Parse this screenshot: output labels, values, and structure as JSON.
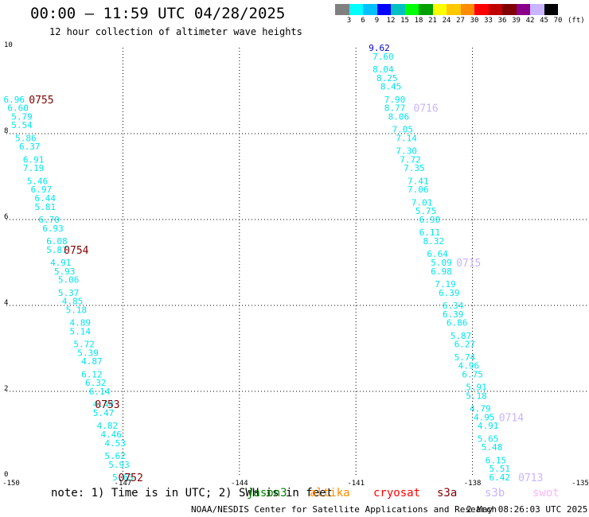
{
  "header": {
    "title": "00:00 – 11:59 UTC 04/28/2025",
    "subtitle": "12 hour collection of altimeter wave heights"
  },
  "colorbar": {
    "unit": "(ft)",
    "ticks": [
      "3",
      "6",
      "9",
      "12",
      "15",
      "18",
      "21",
      "24",
      "27",
      "30",
      "33",
      "36",
      "39",
      "42",
      "45",
      "70"
    ],
    "colors": [
      "#808080",
      "#00ffff",
      "#00c0ff",
      "#0000ff",
      "#00c0c0",
      "#00ff00",
      "#00a000",
      "#ffff00",
      "#ffc800",
      "#ff8c00",
      "#ff0000",
      "#c00000",
      "#800000",
      "#8b008b",
      "#c8b4ff",
      "#000000"
    ]
  },
  "footer": {
    "note": "note:  1) Time is in UTC; 2) SWH is in feet",
    "satellites": [
      {
        "name": "jason3",
        "color": "#008000"
      },
      {
        "name": "altika",
        "color": "#ff8c00"
      },
      {
        "name": "cryosat",
        "color": "#ff0000"
      },
      {
        "name": "s3a",
        "color": "#800000"
      },
      {
        "name": "s3b",
        "color": "#c8b4ff"
      },
      {
        "name": "swot",
        "color": "#ffb4ff"
      }
    ],
    "credit": "NOAA/NESDIS Center for Satellite Applications and Research",
    "timestamp": "2 May 08:26:03 UTC 2025"
  },
  "chart_data": {
    "type": "scatter",
    "title": "00:00 – 11:59 UTC 04/28/2025",
    "subtitle": "12 hour collection of altimeter wave heights",
    "xlim": [
      -150,
      -135
    ],
    "ylim": [
      0,
      10
    ],
    "xticks": [
      "-150",
      "-147",
      "-144",
      "-141",
      "-138",
      "-135"
    ],
    "yticks": [
      "0",
      "2",
      "4",
      "6",
      "8",
      "10"
    ],
    "grid": true,
    "track_color": "#00e5ee",
    "track_color_high": "#0000cd",
    "tracks": [
      {
        "satellite": "s3a",
        "color": "#800000",
        "points": [
          {
            "lon": -149.8,
            "lat": 8.8,
            "swh": "6.96"
          },
          {
            "lon": -149.7,
            "lat": 8.6,
            "swh": "6.60"
          },
          {
            "lon": -149.6,
            "lat": 8.4,
            "swh": "5.79"
          },
          {
            "lon": -149.6,
            "lat": 8.2,
            "swh": "5.54"
          },
          {
            "lon": -149.5,
            "lat": 7.9,
            "swh": "5.86"
          },
          {
            "lon": -149.4,
            "lat": 7.7,
            "swh": "6.37"
          },
          {
            "lon": -149.3,
            "lat": 7.4,
            "swh": "6.91"
          },
          {
            "lon": -149.3,
            "lat": 7.2,
            "swh": "7.19"
          },
          {
            "lon": -149.2,
            "lat": 6.9,
            "swh": "5.46"
          },
          {
            "lon": -149.1,
            "lat": 6.7,
            "swh": "6.97"
          },
          {
            "lon": -149.0,
            "lat": 6.5,
            "swh": "6.44"
          },
          {
            "lon": -149.0,
            "lat": 6.3,
            "swh": "5.81"
          },
          {
            "lon": -148.9,
            "lat": 6.0,
            "swh": "6.70"
          },
          {
            "lon": -148.8,
            "lat": 5.8,
            "swh": "6.93"
          },
          {
            "lon": -148.7,
            "lat": 5.5,
            "swh": "6.08"
          },
          {
            "lon": -148.7,
            "lat": 5.3,
            "swh": "5.87"
          },
          {
            "lon": -148.6,
            "lat": 5.0,
            "swh": "4.91"
          },
          {
            "lon": -148.5,
            "lat": 4.8,
            "swh": "5.93"
          },
          {
            "lon": -148.4,
            "lat": 4.6,
            "swh": "5.06"
          },
          {
            "lon": -148.4,
            "lat": 4.3,
            "swh": "5.37"
          },
          {
            "lon": -148.3,
            "lat": 4.1,
            "swh": "4.85"
          },
          {
            "lon": -148.2,
            "lat": 3.9,
            "swh": "5.18"
          },
          {
            "lon": -148.1,
            "lat": 3.6,
            "swh": "4.89"
          },
          {
            "lon": -148.1,
            "lat": 3.4,
            "swh": "5.14"
          },
          {
            "lon": -148.0,
            "lat": 3.1,
            "swh": "5.72"
          },
          {
            "lon": -147.9,
            "lat": 2.9,
            "swh": "5.39"
          },
          {
            "lon": -147.8,
            "lat": 2.7,
            "swh": "4.87"
          },
          {
            "lon": -147.8,
            "lat": 2.4,
            "swh": "6.12"
          },
          {
            "lon": -147.7,
            "lat": 2.2,
            "swh": "6.32"
          },
          {
            "lon": -147.6,
            "lat": 2.0,
            "swh": "6.14"
          },
          {
            "lon": -147.5,
            "lat": 1.7,
            "swh": "4.44"
          },
          {
            "lon": -147.5,
            "lat": 1.5,
            "swh": "5.47"
          },
          {
            "lon": -147.4,
            "lat": 1.2,
            "swh": "4.82"
          },
          {
            "lon": -147.3,
            "lat": 1.0,
            "swh": "4.46"
          },
          {
            "lon": -147.2,
            "lat": 0.8,
            "swh": "4.53"
          },
          {
            "lon": -147.2,
            "lat": 0.5,
            "swh": "5.62"
          },
          {
            "lon": -147.1,
            "lat": 0.3,
            "swh": "5.93"
          },
          {
            "lon": -147.0,
            "lat": 0.0,
            "swh": "5.63"
          }
        ],
        "time_labels": [
          {
            "text": "0755",
            "lon": -149.1,
            "lat": 8.8
          },
          {
            "text": "0754",
            "lon": -148.2,
            "lat": 5.3
          },
          {
            "text": "0753",
            "lon": -147.4,
            "lat": 1.7
          },
          {
            "text": "0752",
            "lon": -146.8,
            "lat": 0.0
          }
        ]
      },
      {
        "satellite": "s3b",
        "color": "#c8b4ff",
        "points": [
          {
            "lon": -140.4,
            "lat": 10.0,
            "swh": "9.62"
          },
          {
            "lon": -140.3,
            "lat": 9.8,
            "swh": "7.60"
          },
          {
            "lon": -140.3,
            "lat": 9.5,
            "swh": "8.04"
          },
          {
            "lon": -140.2,
            "lat": 9.3,
            "swh": "8.25"
          },
          {
            "lon": -140.1,
            "lat": 9.1,
            "swh": "8.45"
          },
          {
            "lon": -140.0,
            "lat": 8.8,
            "swh": "7.90"
          },
          {
            "lon": -140.0,
            "lat": 8.6,
            "swh": "8.77"
          },
          {
            "lon": -139.9,
            "lat": 8.4,
            "swh": "8.06"
          },
          {
            "lon": -139.8,
            "lat": 8.1,
            "swh": "7.05"
          },
          {
            "lon": -139.7,
            "lat": 7.9,
            "swh": "7.14"
          },
          {
            "lon": -139.7,
            "lat": 7.6,
            "swh": "7.30"
          },
          {
            "lon": -139.6,
            "lat": 7.4,
            "swh": "7.72"
          },
          {
            "lon": -139.5,
            "lat": 7.2,
            "swh": "7.35"
          },
          {
            "lon": -139.4,
            "lat": 6.9,
            "swh": "7.41"
          },
          {
            "lon": -139.4,
            "lat": 6.7,
            "swh": "7.06"
          },
          {
            "lon": -139.3,
            "lat": 6.4,
            "swh": "7.01"
          },
          {
            "lon": -139.2,
            "lat": 6.2,
            "swh": "5.75"
          },
          {
            "lon": -139.1,
            "lat": 6.0,
            "swh": "6.90"
          },
          {
            "lon": -139.1,
            "lat": 5.7,
            "swh": "6.11"
          },
          {
            "lon": -139.0,
            "lat": 5.5,
            "swh": "8.32"
          },
          {
            "lon": -138.9,
            "lat": 5.2,
            "swh": "6.64"
          },
          {
            "lon": -138.8,
            "lat": 5.0,
            "swh": "5.09"
          },
          {
            "lon": -138.8,
            "lat": 4.8,
            "swh": "6.98"
          },
          {
            "lon": -138.7,
            "lat": 4.5,
            "swh": "7.19"
          },
          {
            "lon": -138.6,
            "lat": 4.3,
            "swh": "6.39"
          },
          {
            "lon": -138.5,
            "lat": 4.0,
            "swh": "6.34"
          },
          {
            "lon": -138.5,
            "lat": 3.8,
            "swh": "6.39"
          },
          {
            "lon": -138.4,
            "lat": 3.6,
            "swh": "6.86"
          },
          {
            "lon": -138.3,
            "lat": 3.3,
            "swh": "5.87"
          },
          {
            "lon": -138.2,
            "lat": 3.1,
            "swh": "6.27"
          },
          {
            "lon": -138.2,
            "lat": 2.8,
            "swh": "5.74"
          },
          {
            "lon": -138.1,
            "lat": 2.6,
            "swh": "4.96"
          },
          {
            "lon": -138.0,
            "lat": 2.4,
            "swh": "6.75"
          },
          {
            "lon": -137.9,
            "lat": 2.1,
            "swh": "5.91"
          },
          {
            "lon": -137.9,
            "lat": 1.9,
            "swh": "5.18"
          },
          {
            "lon": -137.8,
            "lat": 1.6,
            "swh": "4.79"
          },
          {
            "lon": -137.7,
            "lat": 1.4,
            "swh": "4.95"
          },
          {
            "lon": -137.6,
            "lat": 1.2,
            "swh": "4.91"
          },
          {
            "lon": -137.6,
            "lat": 0.9,
            "swh": "5.65"
          },
          {
            "lon": -137.5,
            "lat": 0.7,
            "swh": "5.48"
          },
          {
            "lon": -137.4,
            "lat": 0.4,
            "swh": "6.15"
          },
          {
            "lon": -137.3,
            "lat": 0.2,
            "swh": "5.51"
          },
          {
            "lon": -137.3,
            "lat": 0.0,
            "swh": "6.42"
          }
        ],
        "time_labels": [
          {
            "text": "0716",
            "lon": -139.2,
            "lat": 8.6
          },
          {
            "text": "0715",
            "lon": -138.1,
            "lat": 5.0
          },
          {
            "text": "0714",
            "lon": -137.0,
            "lat": 1.4
          },
          {
            "text": "0713",
            "lon": -136.5,
            "lat": 0.0
          }
        ]
      }
    ]
  }
}
